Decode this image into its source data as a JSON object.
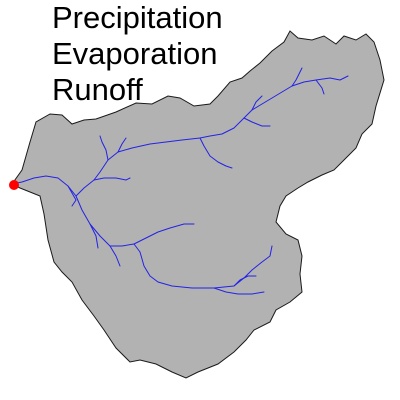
{
  "legend": {
    "lines": [
      "Precipitation",
      "Evaporation",
      "Runoff"
    ]
  },
  "colors": {
    "basin_fill": "#b2b2b2",
    "basin_stroke": "#1a1a1a",
    "river": "#2323e6",
    "outlet": "#ff0000",
    "text": "#000000"
  }
}
